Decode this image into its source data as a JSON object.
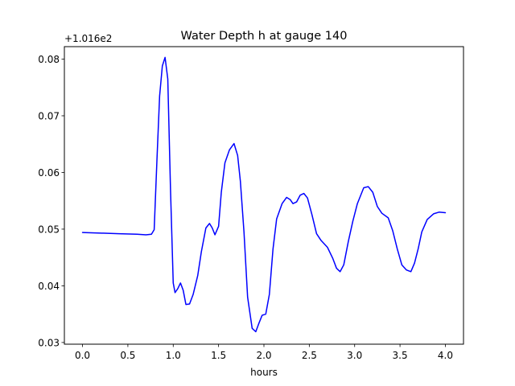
{
  "chart_data": {
    "type": "line",
    "title": "Water Depth h at gauge 140",
    "xlabel": "hours",
    "ylabel": "",
    "y_offset_label": "+1.016e2",
    "xlim": [
      -0.2,
      4.2
    ],
    "ylim": [
      0.0297,
      0.0822
    ],
    "x_ticks": [
      0.0,
      0.5,
      1.0,
      1.5,
      2.0,
      2.5,
      3.0,
      3.5,
      4.0
    ],
    "x_tick_labels": [
      "0.0",
      "0.5",
      "1.0",
      "1.5",
      "2.0",
      "2.5",
      "3.0",
      "3.5",
      "4.0"
    ],
    "y_ticks": [
      0.03,
      0.04,
      0.05,
      0.06,
      0.07,
      0.08
    ],
    "y_tick_labels": [
      "0.03",
      "0.04",
      "0.05",
      "0.06",
      "0.07",
      "0.08"
    ],
    "grid": false,
    "series": [
      {
        "color": "#0000ff",
        "x": [
          0.0,
          0.2,
          0.4,
          0.6,
          0.7,
          0.76,
          0.79,
          0.82,
          0.85,
          0.88,
          0.91,
          0.94,
          0.97,
          1.0,
          1.02,
          1.05,
          1.08,
          1.11,
          1.14,
          1.18,
          1.22,
          1.27,
          1.31,
          1.36,
          1.4,
          1.43,
          1.46,
          1.5,
          1.53,
          1.57,
          1.62,
          1.67,
          1.71,
          1.74,
          1.78,
          1.82,
          1.87,
          1.91,
          1.94,
          1.98,
          2.02,
          2.06,
          2.1,
          2.14,
          2.2,
          2.25,
          2.29,
          2.32,
          2.36,
          2.4,
          2.44,
          2.48,
          2.53,
          2.58,
          2.63,
          2.7,
          2.76,
          2.8,
          2.84,
          2.88,
          2.93,
          2.98,
          3.03,
          3.1,
          3.15,
          3.2,
          3.25,
          3.3,
          3.37,
          3.42,
          3.47,
          3.52,
          3.57,
          3.62,
          3.66,
          3.7,
          3.74,
          3.8,
          3.87,
          3.93,
          4.0
        ],
        "y": [
          0.0494,
          0.0493,
          0.0492,
          0.0491,
          0.049,
          0.0491,
          0.0499,
          0.062,
          0.0735,
          0.0788,
          0.0803,
          0.0765,
          0.057,
          0.0405,
          0.0388,
          0.0395,
          0.0405,
          0.0392,
          0.0367,
          0.0368,
          0.0385,
          0.0418,
          0.046,
          0.0502,
          0.051,
          0.0502,
          0.049,
          0.0505,
          0.0565,
          0.0617,
          0.064,
          0.0651,
          0.063,
          0.0585,
          0.0495,
          0.038,
          0.0325,
          0.0319,
          0.0332,
          0.0348,
          0.035,
          0.0385,
          0.0465,
          0.0518,
          0.0545,
          0.0556,
          0.0552,
          0.0545,
          0.0548,
          0.056,
          0.0563,
          0.0555,
          0.0525,
          0.0492,
          0.048,
          0.0468,
          0.0448,
          0.0431,
          0.0425,
          0.0437,
          0.0478,
          0.0514,
          0.0545,
          0.0573,
          0.0575,
          0.0565,
          0.054,
          0.0528,
          0.052,
          0.0497,
          0.0465,
          0.0437,
          0.0428,
          0.0425,
          0.044,
          0.0465,
          0.0495,
          0.0517,
          0.0527,
          0.053,
          0.0529
        ]
      }
    ]
  }
}
